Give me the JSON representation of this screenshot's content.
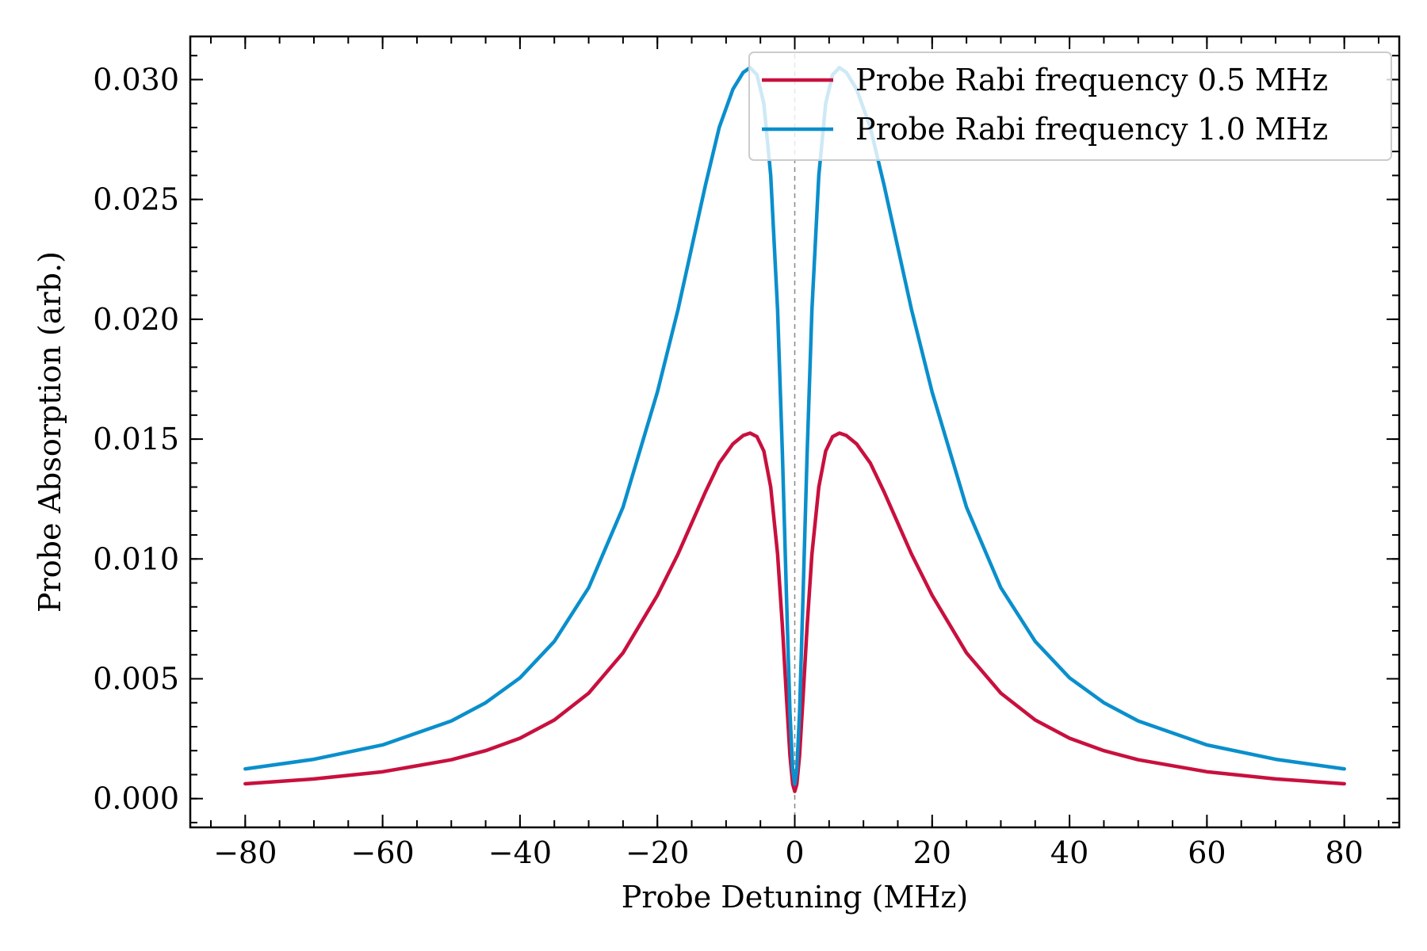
{
  "chart_data": {
    "type": "line",
    "xlabel": "Probe Detuning (MHz)",
    "ylabel": "Probe Absorption (arb.)",
    "xlim": [
      -88,
      88
    ],
    "ylim": [
      -0.0012,
      0.0318
    ],
    "x_major_ticks": [
      -80,
      -60,
      -40,
      -20,
      0,
      20,
      40,
      60,
      80
    ],
    "x_tick_labels": [
      "−80",
      "−60",
      "−40",
      "−20",
      "0",
      "20",
      "40",
      "60",
      "80"
    ],
    "x_minor_step": 5,
    "y_major_ticks": [
      0.0,
      0.005,
      0.01,
      0.015,
      0.02,
      0.025,
      0.03
    ],
    "y_tick_labels": [
      "0.000",
      "0.005",
      "0.010",
      "0.015",
      "0.020",
      "0.025",
      "0.030"
    ],
    "y_minor_step": 0.001,
    "ticks_direction": "in",
    "ticks_on_all_sides": true,
    "grid": false,
    "legend_position": "top-right",
    "reference_line": {
      "x": 0,
      "style": "dashed",
      "color": "#888888"
    },
    "series": [
      {
        "name": "Probe Rabi frequency 0.5 MHz",
        "color": "#c8103e",
        "points": [
          [
            -80,
            0.00062
          ],
          [
            -70,
            0.00082
          ],
          [
            -60,
            0.00112
          ],
          [
            -50,
            0.00162
          ],
          [
            -45,
            0.002
          ],
          [
            -40,
            0.00252
          ],
          [
            -35,
            0.00328
          ],
          [
            -30,
            0.0044
          ],
          [
            -25,
            0.00608
          ],
          [
            -20,
            0.00848
          ],
          [
            -17,
            0.0102
          ],
          [
            -15,
            0.0115
          ],
          [
            -13,
            0.0128
          ],
          [
            -11,
            0.014
          ],
          [
            -9,
            0.0148
          ],
          [
            -7.5,
            0.01515
          ],
          [
            -6.5,
            0.01525
          ],
          [
            -5.5,
            0.0151
          ],
          [
            -4.5,
            0.0145
          ],
          [
            -3.5,
            0.013
          ],
          [
            -2.5,
            0.0102
          ],
          [
            -1.8,
            0.0072
          ],
          [
            -1.2,
            0.0042
          ],
          [
            -0.7,
            0.0018
          ],
          [
            -0.3,
            0.0006
          ],
          [
            0,
            0.0003
          ],
          [
            0.3,
            0.0006
          ],
          [
            0.7,
            0.0018
          ],
          [
            1.2,
            0.0042
          ],
          [
            1.8,
            0.0072
          ],
          [
            2.5,
            0.0102
          ],
          [
            3.5,
            0.013
          ],
          [
            4.5,
            0.0145
          ],
          [
            5.5,
            0.0151
          ],
          [
            6.5,
            0.01525
          ],
          [
            7.5,
            0.01515
          ],
          [
            9,
            0.0148
          ],
          [
            11,
            0.014
          ],
          [
            13,
            0.0128
          ],
          [
            15,
            0.0115
          ],
          [
            17,
            0.0102
          ],
          [
            20,
            0.00848
          ],
          [
            25,
            0.00608
          ],
          [
            30,
            0.0044
          ],
          [
            35,
            0.00328
          ],
          [
            40,
            0.00252
          ],
          [
            45,
            0.002
          ],
          [
            50,
            0.00162
          ],
          [
            60,
            0.00112
          ],
          [
            70,
            0.00082
          ],
          [
            80,
            0.00062
          ]
        ]
      },
      {
        "name": "Probe Rabi frequency 1.0 MHz",
        "color": "#0a8fcc",
        "points": [
          [
            -80,
            0.00124
          ],
          [
            -70,
            0.00164
          ],
          [
            -60,
            0.00224
          ],
          [
            -50,
            0.00324
          ],
          [
            -45,
            0.004
          ],
          [
            -40,
            0.00504
          ],
          [
            -35,
            0.00656
          ],
          [
            -30,
            0.0088
          ],
          [
            -25,
            0.01216
          ],
          [
            -20,
            0.01696
          ],
          [
            -17,
            0.0204
          ],
          [
            -15,
            0.023
          ],
          [
            -13,
            0.0256
          ],
          [
            -11,
            0.028
          ],
          [
            -9,
            0.0296
          ],
          [
            -7.5,
            0.0303
          ],
          [
            -6.5,
            0.0305
          ],
          [
            -5.5,
            0.0302
          ],
          [
            -4.5,
            0.029
          ],
          [
            -3.5,
            0.026
          ],
          [
            -2.5,
            0.0204
          ],
          [
            -1.8,
            0.0144
          ],
          [
            -1.2,
            0.0084
          ],
          [
            -0.7,
            0.0036
          ],
          [
            -0.3,
            0.0012
          ],
          [
            0,
            0.0006
          ],
          [
            0.3,
            0.0012
          ],
          [
            0.7,
            0.0036
          ],
          [
            1.2,
            0.0084
          ],
          [
            1.8,
            0.0144
          ],
          [
            2.5,
            0.0204
          ],
          [
            3.5,
            0.026
          ],
          [
            4.5,
            0.029
          ],
          [
            5.5,
            0.0302
          ],
          [
            6.5,
            0.0305
          ],
          [
            7.5,
            0.0303
          ],
          [
            9,
            0.0296
          ],
          [
            11,
            0.028
          ],
          [
            13,
            0.0256
          ],
          [
            15,
            0.023
          ],
          [
            17,
            0.0204
          ],
          [
            20,
            0.01696
          ],
          [
            25,
            0.01216
          ],
          [
            30,
            0.0088
          ],
          [
            35,
            0.00656
          ],
          [
            40,
            0.00504
          ],
          [
            45,
            0.004
          ],
          [
            50,
            0.00324
          ],
          [
            60,
            0.00224
          ],
          [
            70,
            0.00164
          ],
          [
            80,
            0.00124
          ]
        ]
      }
    ]
  }
}
